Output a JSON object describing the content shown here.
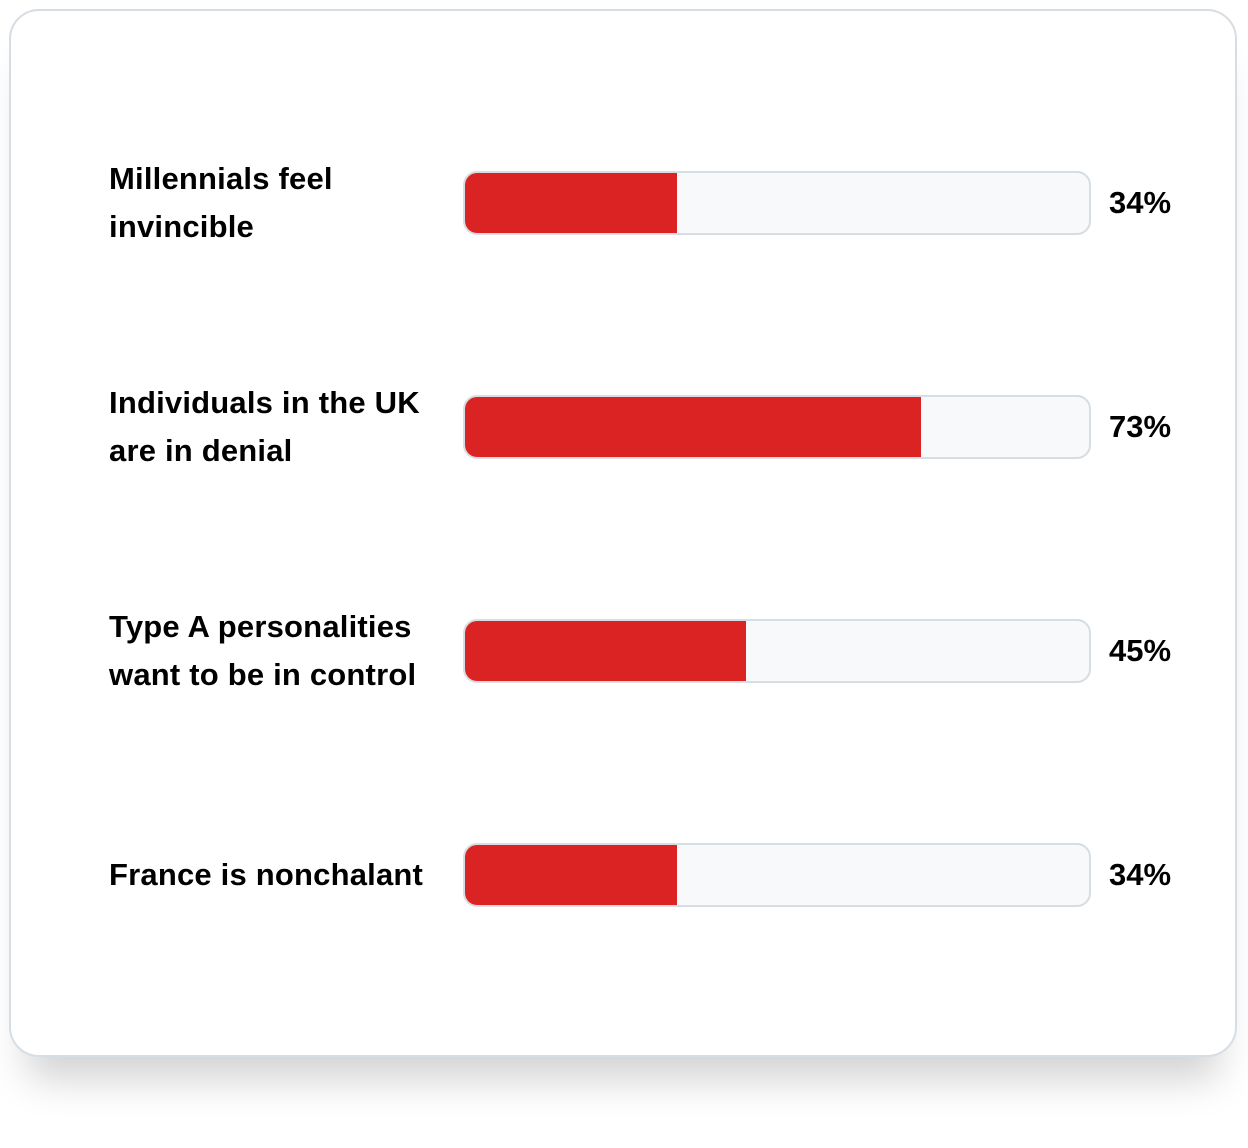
{
  "colors": {
    "bar_fill": "#dc2323",
    "track_background": "#f7f9fb",
    "track_border": "#d6dde3",
    "text": "#000000"
  },
  "chart_data": {
    "type": "bar",
    "orientation": "horizontal",
    "categories": [
      "Millennials feel invincible",
      "Individuals in the UK are in denial",
      "Type A personalities want to be in control",
      "France is nonchalant"
    ],
    "values": [
      34,
      73,
      45,
      34
    ],
    "value_labels": [
      "34%",
      "73%",
      "45%",
      "34%"
    ],
    "unit": "%",
    "xlim": [
      0,
      100
    ]
  }
}
